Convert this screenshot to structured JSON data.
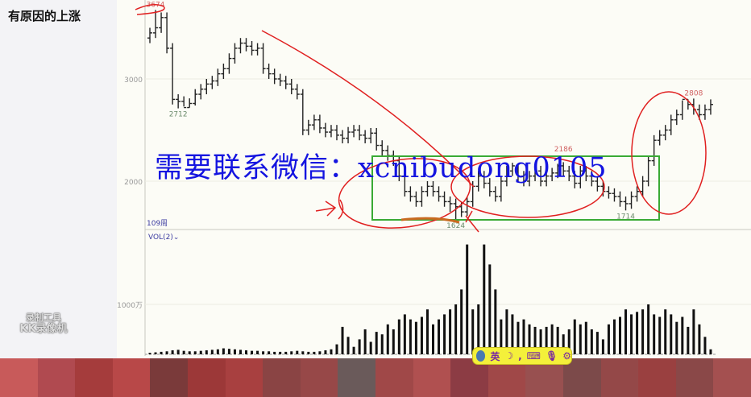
{
  "page_title": "有原因的上涨",
  "watermark_recorder": [
    "录制工具",
    "KK录像机"
  ],
  "overlay_text": "需要联系微信：xcnibudong0105",
  "ime_toolbar": {
    "lang": "英",
    "icons": [
      "ime-logo-icon",
      "moon-icon",
      "punctuation-icon",
      "keyboard-icon",
      "microphone-icon",
      "gear-icon"
    ]
  },
  "colors": {
    "annotation_red": "#e02020",
    "box_green": "#3aaa35",
    "overlay_blue": "#1414e0",
    "price_label_red": "#d06060",
    "price_label_gray": "#6a8a6a"
  },
  "chart_data": [
    {
      "type": "ohlc",
      "period_label": "109周",
      "y_ticks": [
        "3000",
        "2000"
      ],
      "ylim": [
        1550,
        3720
      ],
      "grid": true,
      "annotations": [
        {
          "text": "3674",
          "bar": 2,
          "kind": "high"
        },
        {
          "text": "2712",
          "bar": 6,
          "kind": "low"
        },
        {
          "text": "1624",
          "bar": 55,
          "kind": "low"
        },
        {
          "text": "2186",
          "bar": 74,
          "kind": "high"
        },
        {
          "text": "1714",
          "bar": 85,
          "kind": "low"
        },
        {
          "text": "2808",
          "bar": 97,
          "kind": "high"
        }
      ],
      "open": [
        3400,
        3450,
        3500,
        3600,
        3300,
        2800,
        2780,
        2720,
        2760,
        2850,
        2900,
        2950,
        2980,
        3050,
        3100,
        3200,
        3300,
        3350,
        3320,
        3280,
        3300,
        3100,
        3050,
        3000,
        2980,
        2950,
        2900,
        2850,
        2500,
        2550,
        2600,
        2520,
        2480,
        2500,
        2450,
        2420,
        2480,
        2500,
        2450,
        2420,
        2470,
        2350,
        2300,
        2250,
        2200,
        2050,
        1900,
        1850,
        1800,
        1900,
        1950,
        1900,
        1850,
        1800,
        1780,
        1750,
        1700,
        1800,
        1950,
        2050,
        1980,
        1900,
        1850,
        2000,
        2100,
        2150,
        2050,
        2000,
        2050,
        2100,
        2000,
        2050,
        2080,
        2150,
        2100,
        2050,
        1980,
        2100,
        2050,
        2000,
        1950,
        1900,
        1880,
        1850,
        1800,
        1780,
        1850,
        1900,
        2000,
        2200,
        2400,
        2450,
        2500,
        2600,
        2650,
        2800,
        2750,
        2700,
        2650,
        2700
      ],
      "high": [
        3500,
        3674,
        3650,
        3650,
        3350,
        2850,
        2830,
        2810,
        2900,
        2950,
        3000,
        3030,
        3100,
        3150,
        3250,
        3350,
        3400,
        3400,
        3370,
        3350,
        3350,
        3150,
        3100,
        3050,
        3030,
        3000,
        2950,
        2900,
        2600,
        2650,
        2650,
        2570,
        2550,
        2550,
        2500,
        2530,
        2550,
        2550,
        2500,
        2520,
        2520,
        2400,
        2350,
        2300,
        2250,
        2100,
        1950,
        1900,
        1950,
        2000,
        2000,
        1950,
        1900,
        1850,
        1830,
        1800,
        1850,
        2000,
        2100,
        2100,
        2030,
        1950,
        2050,
        2150,
        2180,
        2170,
        2100,
        2100,
        2150,
        2150,
        2100,
        2130,
        2170,
        2186,
        2150,
        2100,
        2150,
        2150,
        2100,
        2050,
        2000,
        1950,
        1930,
        1900,
        1850,
        1900,
        1950,
        2050,
        2250,
        2450,
        2500,
        2550,
        2650,
        2700,
        2790,
        2800,
        2808,
        2750,
        2750,
        2800
      ],
      "low": [
        3350,
        3400,
        3450,
        3250,
        2750,
        2712,
        2730,
        2720,
        2740,
        2800,
        2850,
        2900,
        2930,
        3000,
        3050,
        3150,
        3250,
        3270,
        3230,
        3230,
        3050,
        3000,
        2950,
        2930,
        2900,
        2850,
        2800,
        2450,
        2450,
        2500,
        2470,
        2430,
        2430,
        2400,
        2370,
        2370,
        2430,
        2400,
        2370,
        2370,
        2300,
        2250,
        2200,
        2150,
        2000,
        1850,
        1800,
        1750,
        1750,
        1850,
        1850,
        1800,
        1750,
        1700,
        1624,
        1650,
        1660,
        1750,
        1900,
        1930,
        1850,
        1800,
        1800,
        1950,
        2050,
        2000,
        1950,
        1950,
        2000,
        1950,
        1950,
        2000,
        2030,
        2050,
        2000,
        1930,
        1930,
        2000,
        1950,
        1900,
        1850,
        1830,
        1800,
        1750,
        1714,
        1730,
        1800,
        1850,
        1950,
        2150,
        2350,
        2400,
        2450,
        2550,
        2600,
        2700,
        2650,
        2600,
        2600,
        2650
      ],
      "close": [
        3450,
        3500,
        3600,
        3300,
        2800,
        2780,
        2720,
        2760,
        2850,
        2900,
        2950,
        2980,
        3050,
        3100,
        3200,
        3300,
        3350,
        3320,
        3280,
        3300,
        3100,
        3050,
        3000,
        2980,
        2950,
        2900,
        2850,
        2500,
        2550,
        2600,
        2520,
        2480,
        2500,
        2450,
        2420,
        2480,
        2500,
        2450,
        2420,
        2470,
        2350,
        2300,
        2250,
        2200,
        2050,
        1900,
        1850,
        1800,
        1900,
        1950,
        1900,
        1850,
        1800,
        1780,
        1750,
        1700,
        1800,
        1950,
        2050,
        1980,
        1900,
        1850,
        2000,
        2100,
        2150,
        2050,
        2000,
        2050,
        2100,
        2000,
        2050,
        2080,
        2150,
        2100,
        2050,
        1980,
        2100,
        2050,
        2000,
        1950,
        1900,
        1880,
        1850,
        1800,
        1780,
        1850,
        1900,
        2000,
        2200,
        2400,
        2450,
        2500,
        2600,
        2650,
        2800,
        2750,
        2700,
        2650,
        2700,
        2750
      ]
    },
    {
      "type": "bar",
      "indicator_label": "VOL(2)",
      "y_ticks": [
        "1000万"
      ],
      "unit": "万",
      "ylim": [
        0,
        2500
      ],
      "values": [
        30,
        40,
        50,
        60,
        80,
        90,
        70,
        60,
        60,
        70,
        80,
        90,
        100,
        120,
        110,
        100,
        90,
        80,
        70,
        70,
        60,
        60,
        50,
        50,
        50,
        60,
        70,
        60,
        50,
        50,
        60,
        80,
        100,
        200,
        550,
        350,
        150,
        300,
        500,
        250,
        450,
        400,
        600,
        500,
        700,
        800,
        700,
        650,
        750,
        900,
        600,
        700,
        800,
        900,
        1000,
        1300,
        2200,
        900,
        1000,
        2200,
        1800,
        1300,
        700,
        900,
        800,
        650,
        700,
        600,
        550,
        500,
        550,
        600,
        550,
        400,
        500,
        700,
        600,
        650,
        500,
        450,
        300,
        600,
        700,
        750,
        900,
        800,
        850,
        900,
        1000,
        800,
        750,
        900,
        800,
        650,
        750,
        550,
        900,
        600,
        350,
        100
      ]
    }
  ]
}
